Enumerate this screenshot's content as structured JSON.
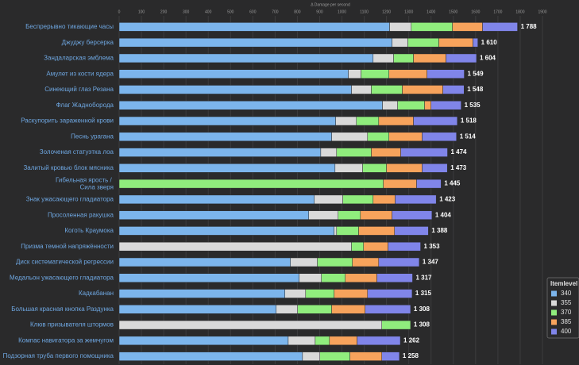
{
  "chart_data": {
    "type": "stacked-bar",
    "orientation": "horizontal",
    "x_label": "Δ Damage per second",
    "legend_title": "Itemlevel",
    "legend_position": "bottom-right",
    "grid": true,
    "xlim": [
      0,
      1900
    ],
    "xticks": [
      0,
      100,
      200,
      300,
      400,
      500,
      600,
      700,
      800,
      900,
      1000,
      1100,
      1200,
      1300,
      1400,
      1500,
      1600,
      1700,
      1800,
      1900
    ],
    "categories": [
      "Беспрерывно тикающие часы",
      "Джуджу берсерка",
      "Зандаларская эмблема",
      "Амулет из кости ядера",
      "Синеющий глаз Резана",
      "Флаг Жаднобородa",
      "Раскупорить зараженной крови",
      "Песнь урагана",
      "Золоченая статуэтка лоа",
      "Залитый кровью блок мясника",
      "Гибельная ярость / Сила зверя",
      "Знак ужасающего гладиатора",
      "Просоленная ракушка",
      "Коготь Краумока",
      "Призма темной напряжённости",
      "Диск систематической регрессии",
      "Медальон ужасающего гладиатора",
      "Кадкабанан",
      "Большая красная кнопка Раздунка",
      "Клюв призывателя штормов",
      "Компас навигатора за жемчугом",
      "Подзорная труба первого помощника"
    ],
    "series": [
      {
        "name": "340",
        "color": "#7cb5ec",
        "values": [
          1214,
          1225,
          1140,
          1029,
          1043,
          1182,
          972,
          954,
          905,
          969,
          0,
          876,
          851,
          965,
          0,
          769,
          808,
          744,
          705,
          0,
          759,
          823
        ]
      },
      {
        "name": "355",
        "color": "#d9d9d9",
        "values": [
          97,
          71,
          92,
          57,
          89,
          68,
          93,
          161,
          71,
          124,
          0,
          128,
          132,
          11,
          1043,
          121,
          100,
          93,
          96,
          1179,
          121,
          78
        ]
      },
      {
        "name": "370",
        "color": "#90ed7d",
        "values": [
          185,
          139,
          89,
          125,
          139,
          121,
          100,
          96,
          156,
          107,
          1186,
          136,
          100,
          99,
          54,
          157,
          107,
          128,
          153,
          129,
          64,
          135
        ]
      },
      {
        "name": "385",
        "color": "#f7a35c",
        "values": [
          135,
          153,
          146,
          171,
          182,
          29,
          156,
          149,
          132,
          160,
          149,
          99,
          142,
          161,
          110,
          118,
          142,
          150,
          150,
          0,
          124,
          143
        ]
      },
      {
        "name": "400",
        "color": "#8085e9",
        "values": [
          157,
          22,
          137,
          167,
          95,
          135,
          197,
          154,
          210,
          113,
          110,
          184,
          179,
          152,
          146,
          182,
          160,
          200,
          204,
          0,
          194,
          79
        ]
      }
    ],
    "totals": [
      1788,
      1610,
      1604,
      1549,
      1548,
      1535,
      1518,
      1514,
      1474,
      1473,
      1445,
      1423,
      1404,
      1388,
      1353,
      1347,
      1317,
      1315,
      1308,
      1308,
      1262,
      1258
    ],
    "total_labels": [
      "1 788",
      "1 610",
      "1 604",
      "1 549",
      "1 548",
      "1 535",
      "1 518",
      "1 514",
      "1 474",
      "1 473",
      "1 445",
      "1 423",
      "1 404",
      "1 388",
      "1 353",
      "1 347",
      "1 317",
      "1 315",
      "1 308",
      "1 308",
      "1 262",
      "1 258"
    ]
  }
}
